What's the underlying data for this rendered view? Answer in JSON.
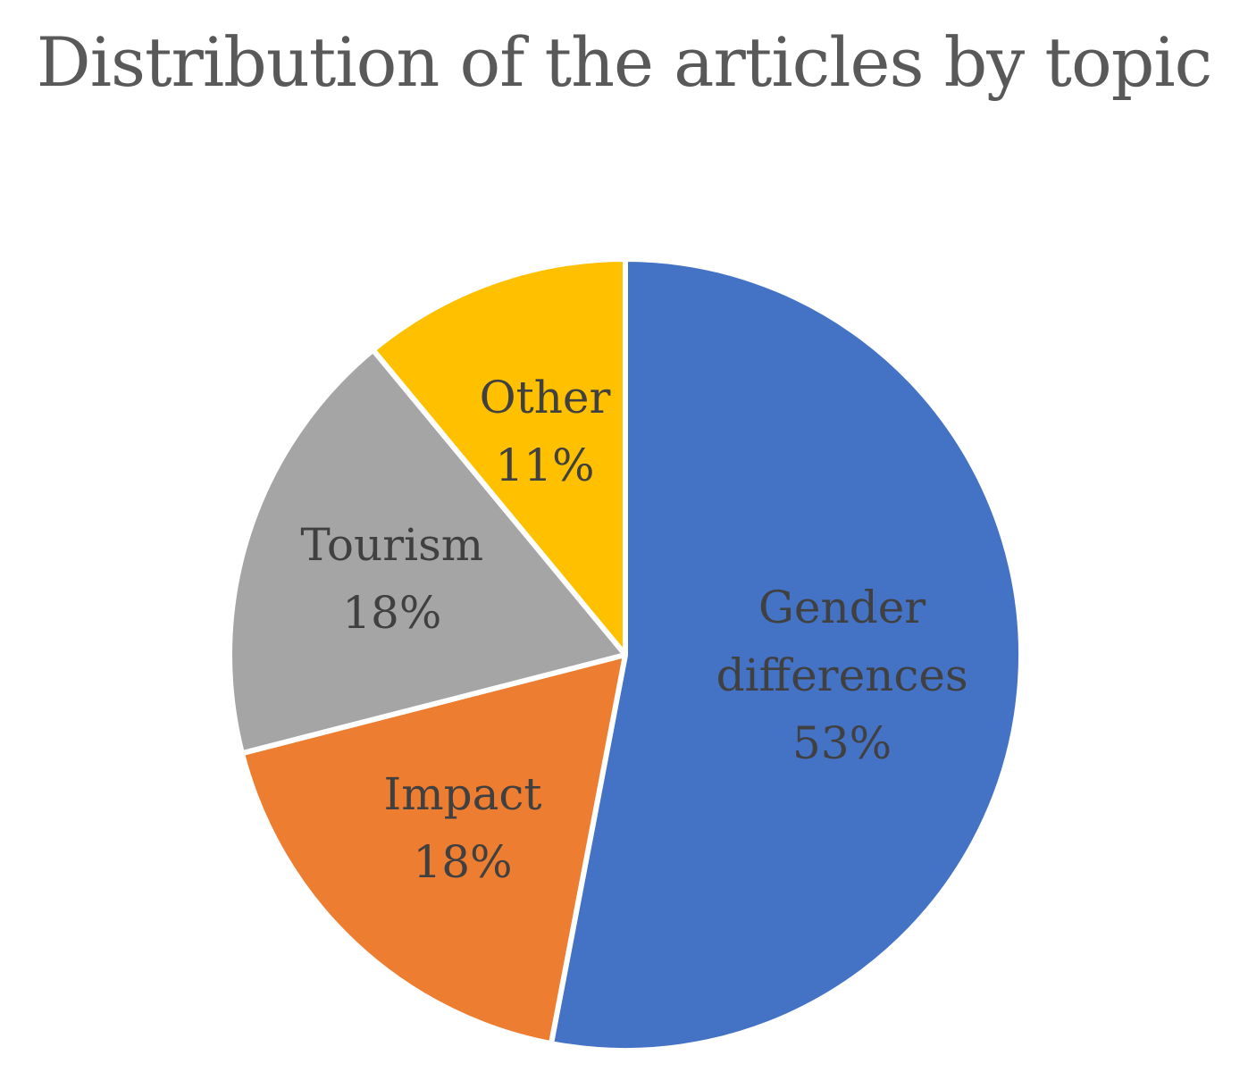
{
  "chart_data": {
    "type": "pie",
    "title": "Distribution of the articles by topic",
    "slices": [
      {
        "name": "Gender differences",
        "label_lines": [
          "Gender",
          "differences"
        ],
        "value": 53,
        "value_label": "53%",
        "color": "#4472C4"
      },
      {
        "name": "Impact",
        "label_lines": [
          "Impact"
        ],
        "value": 18,
        "value_label": "18%",
        "color": "#ED7D31"
      },
      {
        "name": "Tourism",
        "label_lines": [
          "Tourism"
        ],
        "value": 18,
        "value_label": "18%",
        "color": "#A5A5A5"
      },
      {
        "name": "Other",
        "label_lines": [
          "Other"
        ],
        "value": 11,
        "value_label": "11%",
        "color": "#FFC000"
      }
    ],
    "legend": "none",
    "data_labels": "inside"
  }
}
